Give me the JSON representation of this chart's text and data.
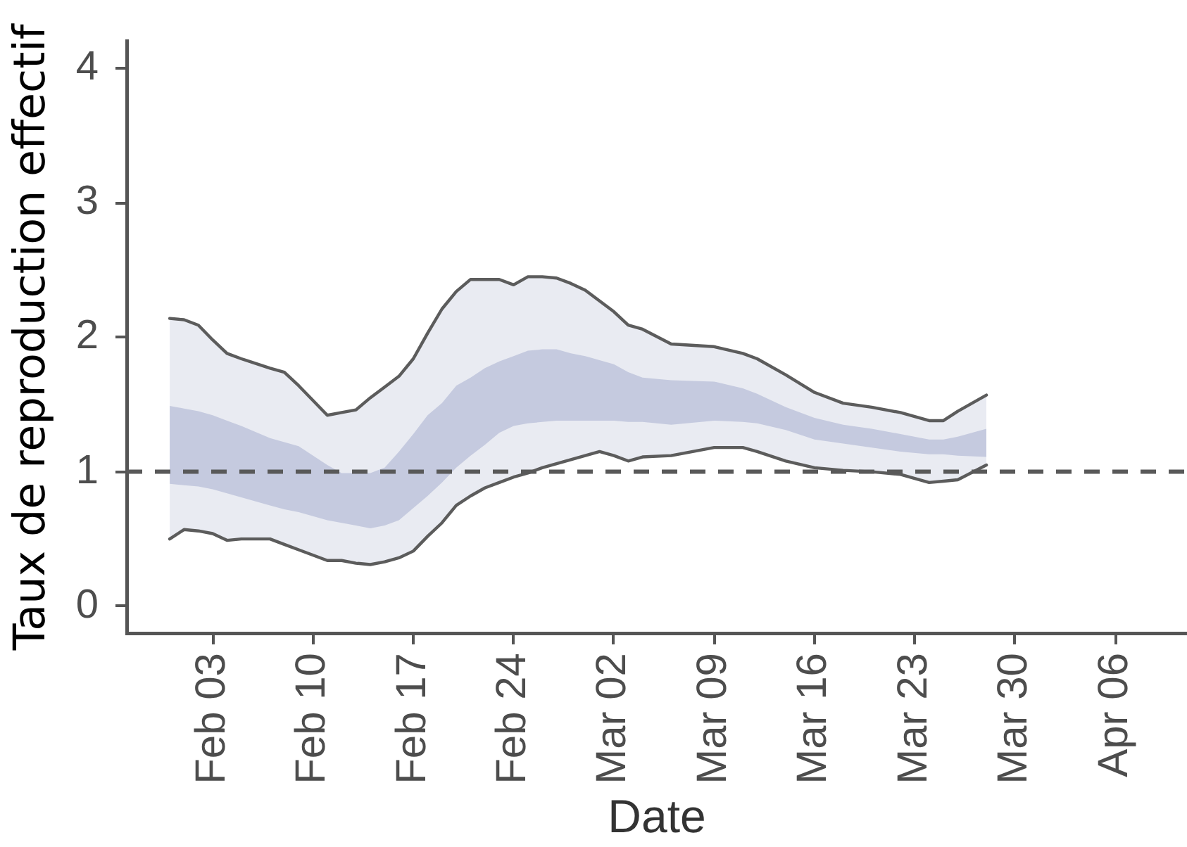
{
  "chart_data": {
    "type": "line",
    "xlabel": "Date",
    "ylabel": "Taux de reproduction effectif",
    "x": [
      "--01-31",
      "--02-01",
      "--02-02",
      "--02-03",
      "--02-04",
      "--02-05",
      "--02-07",
      "--02-08",
      "--02-09",
      "--02-11",
      "--02-12",
      "--02-13",
      "--02-14",
      "--02-15",
      "--02-16",
      "--02-17",
      "--02-18",
      "--02-19",
      "--02-20",
      "--02-21",
      "--02-22",
      "--02-23",
      "--02-24",
      "--02-25",
      "--02-26",
      "--02-27",
      "--02-28",
      "--02-29",
      "--03-01",
      "--03-02",
      "--03-03",
      "--03-04",
      "--03-06",
      "--03-09",
      "--03-11",
      "--03-12",
      "--03-14",
      "--03-16",
      "--03-18",
      "--03-20",
      "--03-22",
      "--03-24",
      "--03-25",
      "--03-26",
      "--03-28"
    ],
    "series": [
      {
        "color": "#e9ebf2",
        "values": [
          null,
          null,
          null,
          null,
          null,
          null,
          null,
          null,
          null,
          null,
          null,
          null,
          null,
          null,
          null,
          null,
          null,
          null,
          null,
          null,
          null,
          null,
          null,
          null,
          null,
          null,
          null,
          null,
          null,
          null,
          null,
          null,
          null,
          null,
          null,
          null,
          null,
          null,
          null,
          null,
          null,
          null,
          null,
          null,
          null
        ],
        "lower": [
          0.5,
          0.57,
          0.56,
          0.54,
          0.49,
          0.5,
          0.5,
          0.46,
          0.42,
          0.34,
          0.34,
          0.32,
          0.31,
          0.33,
          0.36,
          0.41,
          0.52,
          0.62,
          0.75,
          0.82,
          0.88,
          0.92,
          0.96,
          0.99,
          1.03,
          1.06,
          1.09,
          1.12,
          1.15,
          1.12,
          1.08,
          1.11,
          1.12,
          1.18,
          1.18,
          1.15,
          1.08,
          1.03,
          1.01,
          1.0,
          0.98,
          0.92,
          0.93,
          0.94,
          1.05
        ],
        "upper": [
          2.14,
          2.13,
          2.09,
          1.98,
          1.88,
          1.84,
          1.77,
          1.74,
          1.64,
          1.42,
          1.44,
          1.46,
          1.55,
          1.63,
          1.71,
          1.84,
          2.03,
          2.21,
          2.34,
          2.43,
          2.43,
          2.43,
          2.39,
          2.45,
          2.45,
          2.44,
          2.4,
          2.35,
          2.27,
          2.19,
          2.09,
          2.06,
          1.95,
          1.93,
          1.88,
          1.84,
          1.72,
          1.59,
          1.51,
          1.48,
          1.44,
          1.38,
          1.38,
          1.45,
          1.57
        ]
      },
      {
        "color": "#c5cadf",
        "values": [
          null,
          null,
          null,
          null,
          null,
          null,
          null,
          null,
          null,
          null,
          null,
          null,
          null,
          null,
          null,
          null,
          null,
          null,
          null,
          null,
          null,
          null,
          null,
          null,
          null,
          null,
          null,
          null,
          null,
          null,
          null,
          null,
          null,
          null,
          null,
          null,
          null,
          null,
          null,
          null,
          null,
          null,
          null,
          null,
          null
        ],
        "lower": [
          0.91,
          0.9,
          0.89,
          0.87,
          0.84,
          0.81,
          0.75,
          0.72,
          0.7,
          0.64,
          0.62,
          0.6,
          0.58,
          0.6,
          0.64,
          0.73,
          0.82,
          0.92,
          1.03,
          1.12,
          1.2,
          1.29,
          1.34,
          1.36,
          1.37,
          1.38,
          1.38,
          1.38,
          1.38,
          1.38,
          1.37,
          1.37,
          1.35,
          1.38,
          1.37,
          1.36,
          1.31,
          1.24,
          1.21,
          1.18,
          1.15,
          1.13,
          1.13,
          1.12,
          1.11
        ],
        "upper": [
          1.49,
          1.47,
          1.45,
          1.42,
          1.38,
          1.34,
          1.25,
          1.22,
          1.19,
          1.05,
          0.99,
          0.99,
          0.99,
          1.03,
          1.15,
          1.28,
          1.42,
          1.51,
          1.64,
          1.7,
          1.77,
          1.82,
          1.86,
          1.9,
          1.91,
          1.91,
          1.88,
          1.86,
          1.83,
          1.8,
          1.74,
          1.7,
          1.68,
          1.67,
          1.62,
          1.58,
          1.48,
          1.4,
          1.35,
          1.32,
          1.28,
          1.24,
          1.24,
          1.26,
          1.32
        ]
      },
      {
        "color": "#5c5c5c",
        "values": [
          2.14,
          2.13,
          2.09,
          1.98,
          1.88,
          1.84,
          1.77,
          1.74,
          1.64,
          1.42,
          1.44,
          1.46,
          1.55,
          1.63,
          1.71,
          1.84,
          2.03,
          2.21,
          2.34,
          2.43,
          2.43,
          2.43,
          2.39,
          2.45,
          2.45,
          2.44,
          2.4,
          2.35,
          2.27,
          2.19,
          2.09,
          2.06,
          1.95,
          1.93,
          1.88,
          1.84,
          1.72,
          1.59,
          1.51,
          1.48,
          1.44,
          1.38,
          1.38,
          1.45,
          1.57
        ]
      },
      {
        "color": "#5c5c5c",
        "values": [
          0.5,
          0.57,
          0.56,
          0.54,
          0.49,
          0.5,
          0.5,
          0.46,
          0.42,
          0.34,
          0.34,
          0.32,
          0.31,
          0.33,
          0.36,
          0.41,
          0.52,
          0.62,
          0.75,
          0.82,
          0.88,
          0.92,
          0.96,
          0.99,
          1.03,
          1.06,
          1.09,
          1.12,
          1.15,
          1.12,
          1.08,
          1.11,
          1.12,
          1.18,
          1.18,
          1.15,
          1.08,
          1.03,
          1.01,
          1.0,
          0.98,
          0.92,
          0.93,
          0.94,
          1.05
        ]
      }
    ],
    "xlim": [
      "--01-28",
      "--04-11"
    ],
    "xticks": [
      {
        "value": "--02-03",
        "label": "Feb 03"
      },
      {
        "value": "--02-10",
        "label": "Feb 10"
      },
      {
        "value": "--02-17",
        "label": "Feb 17"
      },
      {
        "value": "--02-24",
        "label": "Feb 24"
      },
      {
        "value": "--03-02",
        "label": "Mar 02"
      },
      {
        "value": "--03-09",
        "label": "Mar 09"
      },
      {
        "value": "--03-16",
        "label": "Mar 16"
      },
      {
        "value": "--03-23",
        "label": "Mar 23"
      },
      {
        "value": "--03-30",
        "label": "Mar 30"
      },
      {
        "value": "--04-06",
        "label": "Apr 06"
      }
    ],
    "ylim": [
      -0.2,
      4.2
    ],
    "yticks": [
      0,
      1,
      2,
      3,
      4
    ],
    "ref_lines": [
      {
        "axis": "y",
        "value": 1,
        "color": "#595959",
        "line_style": "dashed"
      }
    ]
  }
}
